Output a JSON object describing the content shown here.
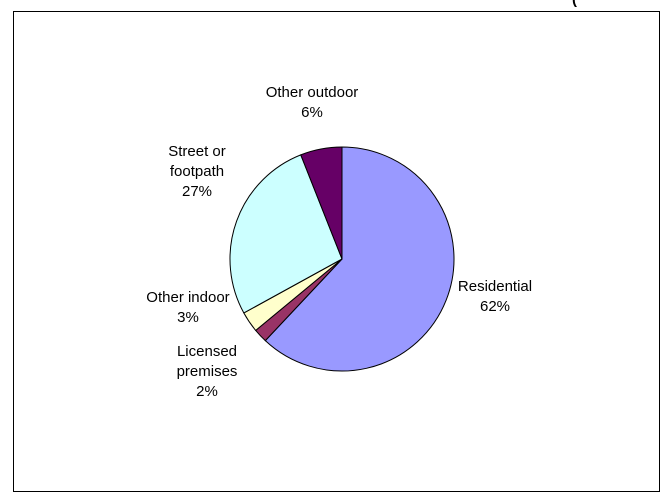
{
  "chart_data": {
    "type": "pie",
    "title": "",
    "slices": [
      {
        "label_lines": [
          "Residential"
        ],
        "value_label": "62%",
        "value": 62,
        "color": "#9999ff"
      },
      {
        "label_lines": [
          "Licensed",
          "premises"
        ],
        "value_label": "2%",
        "value": 2,
        "color": "#993366"
      },
      {
        "label_lines": [
          "Other indoor"
        ],
        "value_label": "3%",
        "value": 3,
        "color": "#ffffcc"
      },
      {
        "label_lines": [
          "Street or",
          "footpath"
        ],
        "value_label": "27%",
        "value": 27,
        "color": "#ccffff"
      },
      {
        "label_lines": [
          "Other outdoor"
        ],
        "value_label": "6%",
        "value": 6,
        "color": "#660066"
      }
    ],
    "start_angle_deg": 0,
    "direction": "clockwise",
    "legend": "none",
    "border_color": "#000000",
    "truncated_title_fragment": "("
  }
}
